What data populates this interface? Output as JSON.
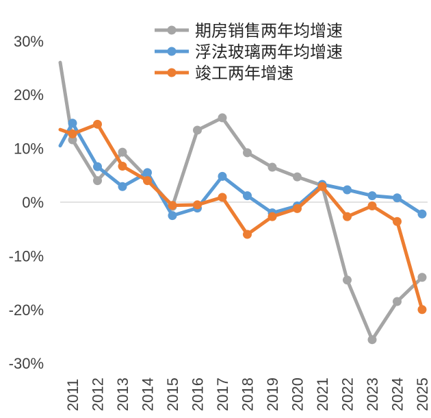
{
  "chart_data": {
    "type": "line",
    "title": "",
    "xlabel": "",
    "ylabel": "",
    "x": [
      "2011",
      "2012",
      "2013",
      "2014",
      "2015",
      "2016",
      "2017",
      "2018",
      "2019",
      "2020",
      "2021",
      "2022",
      "2023",
      "2024",
      "2025"
    ],
    "ylim": [
      -0.3,
      0.3
    ],
    "yticks": [
      0.3,
      0.2,
      0.1,
      0,
      -0.1,
      -0.2,
      -0.3
    ],
    "ytick_labels": [
      "30%",
      "20%",
      "10%",
      "0%",
      "-10%",
      "-20%",
      "-30%"
    ],
    "grid": false,
    "legend_position": "top-right",
    "series": [
      {
        "name": "期房销售两年均增速",
        "color": "#A5A5A5",
        "lead_in": 0.26,
        "values": [
          0.116,
          0.04,
          0.093,
          0.045,
          -0.008,
          0.134,
          0.157,
          0.092,
          0.065,
          0.047,
          0.031,
          -0.145,
          -0.256,
          -0.185,
          -0.14
        ]
      },
      {
        "name": "浮法玻璃两年均增速",
        "color": "#5B9BD5",
        "lead_in": 0.105,
        "values": [
          0.147,
          0.066,
          0.029,
          0.055,
          -0.025,
          -0.011,
          0.048,
          0.012,
          -0.02,
          -0.007,
          0.033,
          0.023,
          0.012,
          0.008,
          -0.022
        ]
      },
      {
        "name": "竣工两年增速",
        "color": "#ED7D31",
        "lead_in": 0.135,
        "values": [
          0.127,
          0.145,
          0.067,
          0.04,
          -0.006,
          -0.005,
          0.009,
          -0.06,
          -0.027,
          -0.012,
          0.029,
          -0.027,
          -0.007,
          -0.036,
          -0.2
        ]
      }
    ]
  }
}
